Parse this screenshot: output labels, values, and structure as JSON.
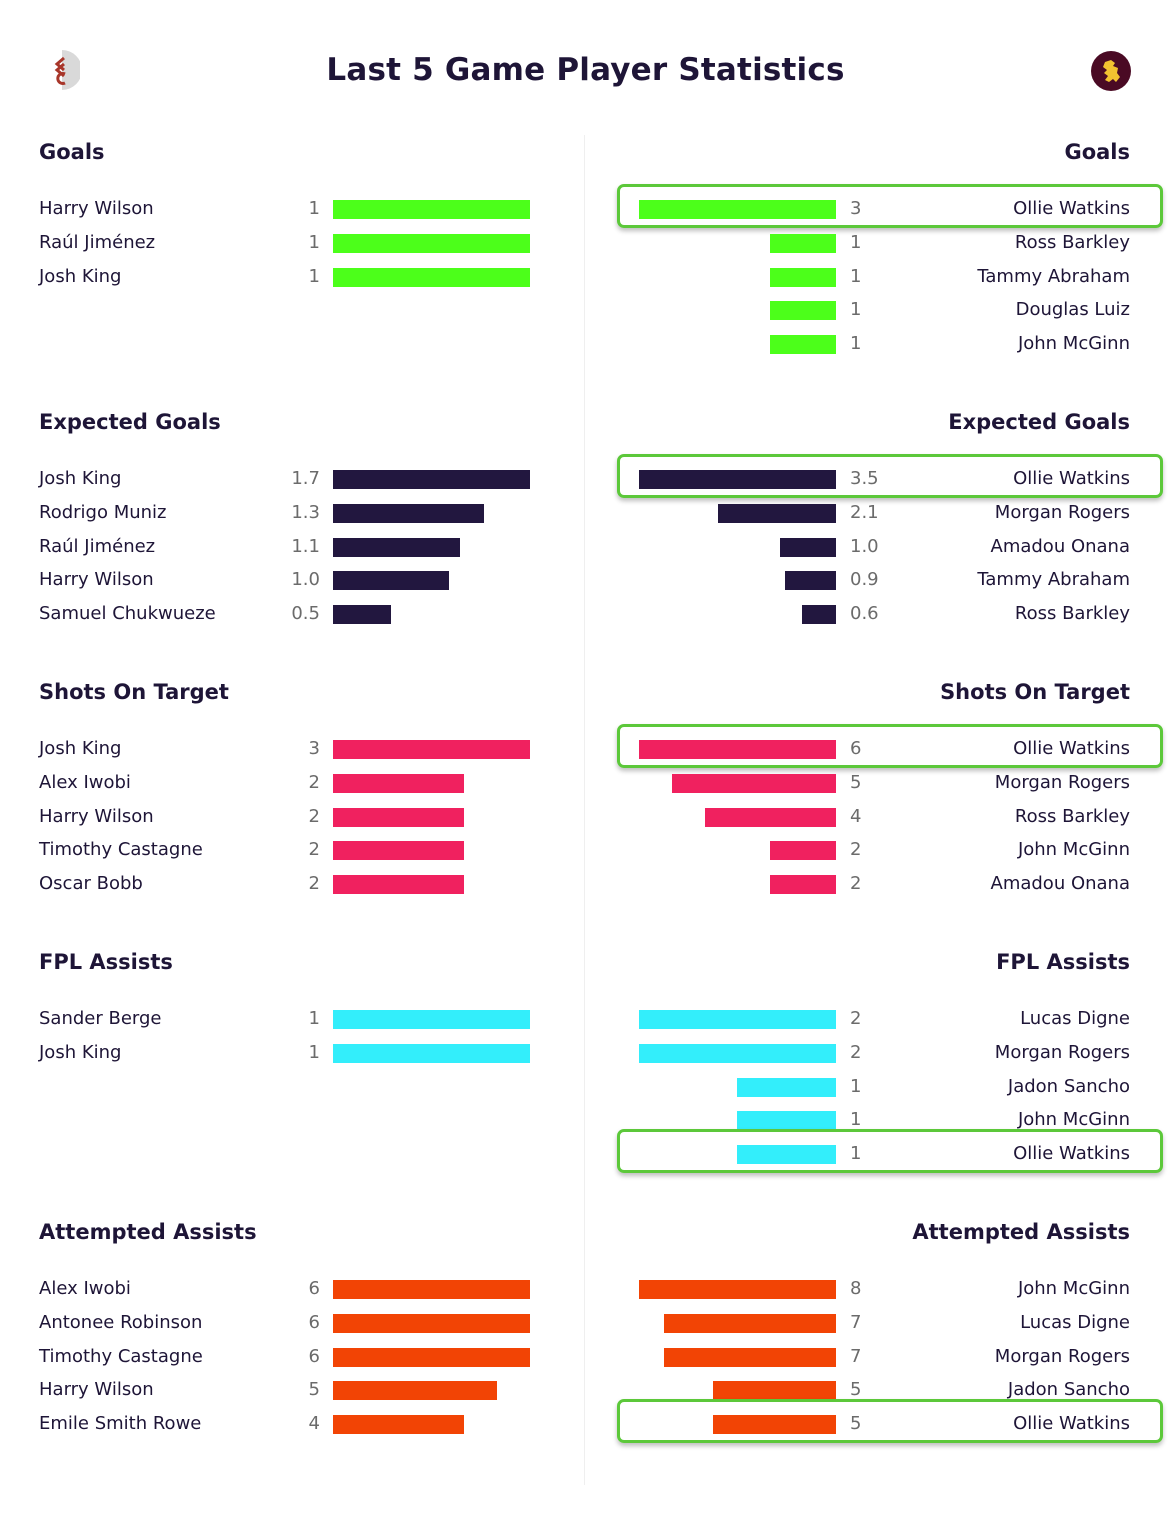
{
  "header": {
    "title": "Last 5 Game Player Statistics",
    "left_team_logo": "fulham-crest-icon",
    "right_team_logo": "aston-villa-crest-icon"
  },
  "colors": {
    "goals": "#4cff1a",
    "expected_goals": "#22173f",
    "shots_on_target": "#f0215f",
    "fpl_assists": "#33eefb",
    "attempted_assists": "#f24405",
    "highlight": "#5cc83a"
  },
  "sections": [
    {
      "key": "goals",
      "title": "Goals",
      "max": 3,
      "left": [
        {
          "name": "Harry Wilson",
          "value": "1"
        },
        {
          "name": "Raúl Jiménez",
          "value": "1"
        },
        {
          "name": "Josh King",
          "value": "1"
        }
      ],
      "right": [
        {
          "name": "Ollie Watkins",
          "value": "3",
          "highlight": true
        },
        {
          "name": "Ross Barkley",
          "value": "1"
        },
        {
          "name": "Tammy Abraham",
          "value": "1"
        },
        {
          "name": "Douglas Luiz",
          "value": "1"
        },
        {
          "name": "John McGinn",
          "value": "1"
        }
      ]
    },
    {
      "key": "expected_goals",
      "title": "Expected Goals",
      "max": 3.5,
      "left": [
        {
          "name": "Josh King",
          "value": "1.7"
        },
        {
          "name": "Rodrigo Muniz",
          "value": "1.3"
        },
        {
          "name": "Raúl Jiménez",
          "value": "1.1"
        },
        {
          "name": "Harry Wilson",
          "value": "1.0"
        },
        {
          "name": "Samuel Chukwueze",
          "value": "0.5"
        }
      ],
      "right": [
        {
          "name": "Ollie Watkins",
          "value": "3.5",
          "highlight": true
        },
        {
          "name": "Morgan Rogers",
          "value": "2.1"
        },
        {
          "name": "Amadou Onana",
          "value": "1.0"
        },
        {
          "name": "Tammy Abraham",
          "value": "0.9"
        },
        {
          "name": "Ross Barkley",
          "value": "0.6"
        }
      ]
    },
    {
      "key": "shots_on_target",
      "title": "Shots On Target",
      "max": 6,
      "left": [
        {
          "name": "Josh King",
          "value": "3"
        },
        {
          "name": "Alex Iwobi",
          "value": "2"
        },
        {
          "name": "Harry Wilson",
          "value": "2"
        },
        {
          "name": "Timothy Castagne",
          "value": "2"
        },
        {
          "name": "Oscar Bobb",
          "value": "2"
        }
      ],
      "right": [
        {
          "name": "Ollie Watkins",
          "value": "6",
          "highlight": true
        },
        {
          "name": "Morgan Rogers",
          "value": "5"
        },
        {
          "name": "Ross Barkley",
          "value": "4"
        },
        {
          "name": "John McGinn",
          "value": "2"
        },
        {
          "name": "Amadou Onana",
          "value": "2"
        }
      ]
    },
    {
      "key": "fpl_assists",
      "title": "FPL Assists",
      "max": 2,
      "left": [
        {
          "name": "Sander Berge",
          "value": "1"
        },
        {
          "name": "Josh King",
          "value": "1"
        }
      ],
      "right": [
        {
          "name": "Lucas Digne",
          "value": "2"
        },
        {
          "name": "Morgan Rogers",
          "value": "2"
        },
        {
          "name": "Jadon Sancho",
          "value": "1"
        },
        {
          "name": "John McGinn",
          "value": "1"
        },
        {
          "name": "Ollie Watkins",
          "value": "1",
          "highlight": true
        }
      ]
    },
    {
      "key": "attempted_assists",
      "title": "Attempted Assists",
      "max": 8,
      "left": [
        {
          "name": "Alex Iwobi",
          "value": "6"
        },
        {
          "name": "Antonee Robinson",
          "value": "6"
        },
        {
          "name": "Timothy Castagne",
          "value": "6"
        },
        {
          "name": "Harry Wilson",
          "value": "5"
        },
        {
          "name": "Emile Smith Rowe",
          "value": "4"
        }
      ],
      "right": [
        {
          "name": "John McGinn",
          "value": "8"
        },
        {
          "name": "Lucas Digne",
          "value": "7"
        },
        {
          "name": "Morgan Rogers",
          "value": "7"
        },
        {
          "name": "Jadon Sancho",
          "value": "5"
        },
        {
          "name": "Ollie Watkins",
          "value": "5",
          "highlight": true
        }
      ]
    }
  ],
  "chart_data": [
    {
      "type": "bar",
      "title": "Goals",
      "orientation": "horizontal",
      "series": [
        {
          "name": "Fulham",
          "categories": [
            "Harry Wilson",
            "Raúl Jiménez",
            "Josh King"
          ],
          "values": [
            1,
            1,
            1
          ]
        },
        {
          "name": "Aston Villa",
          "categories": [
            "Ollie Watkins",
            "Ross Barkley",
            "Tammy Abraham",
            "Douglas Luiz",
            "John McGinn"
          ],
          "values": [
            3,
            1,
            1,
            1,
            1
          ]
        }
      ]
    },
    {
      "type": "bar",
      "title": "Expected Goals",
      "orientation": "horizontal",
      "series": [
        {
          "name": "Fulham",
          "categories": [
            "Josh King",
            "Rodrigo Muniz",
            "Raúl Jiménez",
            "Harry Wilson",
            "Samuel Chukwueze"
          ],
          "values": [
            1.7,
            1.3,
            1.1,
            1.0,
            0.5
          ]
        },
        {
          "name": "Aston Villa",
          "categories": [
            "Ollie Watkins",
            "Morgan Rogers",
            "Amadou Onana",
            "Tammy Abraham",
            "Ross Barkley"
          ],
          "values": [
            3.5,
            2.1,
            1.0,
            0.9,
            0.6
          ]
        }
      ]
    },
    {
      "type": "bar",
      "title": "Shots On Target",
      "orientation": "horizontal",
      "series": [
        {
          "name": "Fulham",
          "categories": [
            "Josh King",
            "Alex Iwobi",
            "Harry Wilson",
            "Timothy Castagne",
            "Oscar Bobb"
          ],
          "values": [
            3,
            2,
            2,
            2,
            2
          ]
        },
        {
          "name": "Aston Villa",
          "categories": [
            "Ollie Watkins",
            "Morgan Rogers",
            "Ross Barkley",
            "John McGinn",
            "Amadou Onana"
          ],
          "values": [
            6,
            5,
            4,
            2,
            2
          ]
        }
      ]
    },
    {
      "type": "bar",
      "title": "FPL Assists",
      "orientation": "horizontal",
      "series": [
        {
          "name": "Fulham",
          "categories": [
            "Sander Berge",
            "Josh King"
          ],
          "values": [
            1,
            1
          ]
        },
        {
          "name": "Aston Villa",
          "categories": [
            "Lucas Digne",
            "Morgan Rogers",
            "Jadon Sancho",
            "John McGinn",
            "Ollie Watkins"
          ],
          "values": [
            2,
            2,
            1,
            1,
            1
          ]
        }
      ]
    },
    {
      "type": "bar",
      "title": "Attempted Assists",
      "orientation": "horizontal",
      "series": [
        {
          "name": "Fulham",
          "categories": [
            "Alex Iwobi",
            "Antonee Robinson",
            "Timothy Castagne",
            "Harry Wilson",
            "Emile Smith Rowe"
          ],
          "values": [
            6,
            6,
            6,
            5,
            4
          ]
        },
        {
          "name": "Aston Villa",
          "categories": [
            "John McGinn",
            "Lucas Digne",
            "Morgan Rogers",
            "Jadon Sancho",
            "Ollie Watkins"
          ],
          "values": [
            8,
            7,
            7,
            5,
            5
          ]
        }
      ]
    }
  ]
}
